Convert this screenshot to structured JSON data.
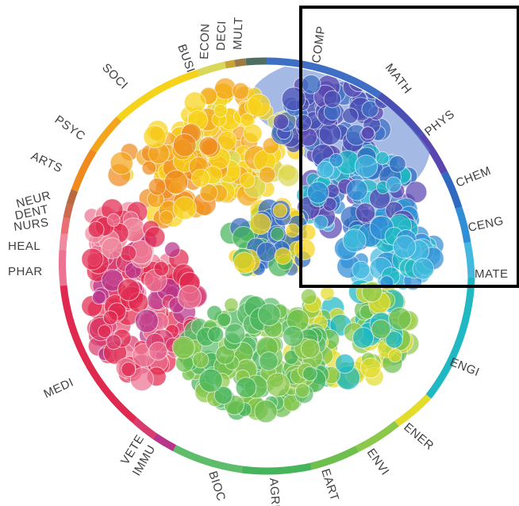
{
  "disciplines": [
    {
      "label": "COMP",
      "color": "#3f6fc4"
    },
    {
      "label": "MATH",
      "color": "#4a4fb4"
    },
    {
      "label": "PHYS",
      "color": "#5a46b0"
    },
    {
      "label": "CHEM",
      "color": "#2f69c0"
    },
    {
      "label": "CENG",
      "color": "#2f8ed6"
    },
    {
      "label": "MATE",
      "color": "#44b8df"
    },
    {
      "label": "ENGI",
      "color": "#1fb8c3"
    },
    {
      "label": "ENER",
      "color": "#e3dc2b"
    },
    {
      "label": "ENVI",
      "color": "#8cc84a"
    },
    {
      "label": "EART",
      "color": "#6ebf4d"
    },
    {
      "label": "AGRI",
      "color": "#46b45a"
    },
    {
      "label": "BIOC",
      "color": "#5dbd6b"
    },
    {
      "label": "IMMU",
      "color": "#b8348a"
    },
    {
      "label": "VETE",
      "color": "#d83b6e"
    },
    {
      "label": "MEDI",
      "color": "#e0294f"
    },
    {
      "label": "PHAR",
      "color": "#ec7391"
    },
    {
      "label": "HEAL",
      "color": "#ef8a9f"
    },
    {
      "label": "NURS",
      "color": "#e96f72"
    },
    {
      "label": "DENT",
      "color": "#c96b4c"
    },
    {
      "label": "NEUR",
      "color": "#b86a3e"
    },
    {
      "label": "ARTS",
      "color": "#ef8a1e"
    },
    {
      "label": "PSYC",
      "color": "#f3a51d"
    },
    {
      "label": "SOCI",
      "color": "#f7d21a"
    },
    {
      "label": "BUSI",
      "color": "#d8d95a"
    },
    {
      "label": "ECON",
      "color": "#c7a33a"
    },
    {
      "label": "DECI",
      "color": "#9b7a44"
    },
    {
      "label": "MULT",
      "color": "#4f6e63"
    }
  ]
}
